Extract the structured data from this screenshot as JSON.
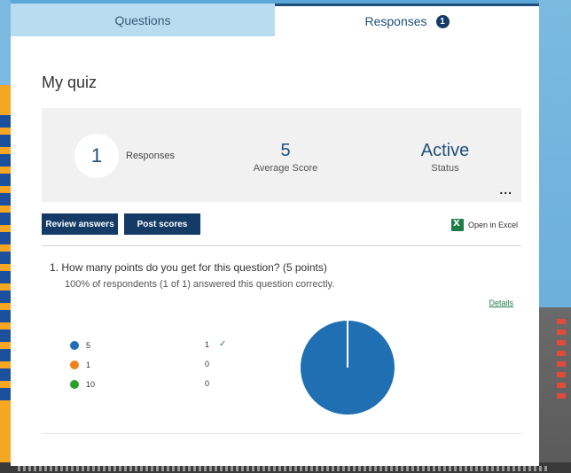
{
  "tabs": [
    {
      "label": "Questions",
      "active": false
    },
    {
      "label": "Responses",
      "active": true,
      "badge": "1"
    }
  ],
  "quiz": {
    "title": "My quiz"
  },
  "summary": {
    "responses_count": "1",
    "responses_label": "Responses",
    "average_score": "5",
    "average_score_label": "Average Score",
    "status": "Active",
    "status_label": "Status",
    "more_label": "..."
  },
  "actions": {
    "review_label": "Review answers",
    "post_label": "Post scores",
    "excel_label": "Open in Excel"
  },
  "question": {
    "number": "1.",
    "text": "How many points do you get for this question? (5 points)",
    "result": "100% of respondents (1 of 1) answered this question correctly.",
    "details_label": "Details",
    "options": [
      {
        "label": "5",
        "count": "1",
        "correct": true,
        "color": "#1f6fb2"
      },
      {
        "label": "1",
        "count": "0",
        "correct": false,
        "color": "#f07f1d"
      },
      {
        "label": "10",
        "count": "0",
        "correct": false,
        "color": "#2ca02c"
      }
    ]
  },
  "colors": {
    "accent": "#133b66",
    "tab_inactive": "#b9dcf0",
    "summary_bg": "#f1f1f1",
    "excel_green": "#1e7e45"
  },
  "icons": {
    "check": "check-icon",
    "excel": "excel-icon",
    "more": "more-dots-icon"
  }
}
